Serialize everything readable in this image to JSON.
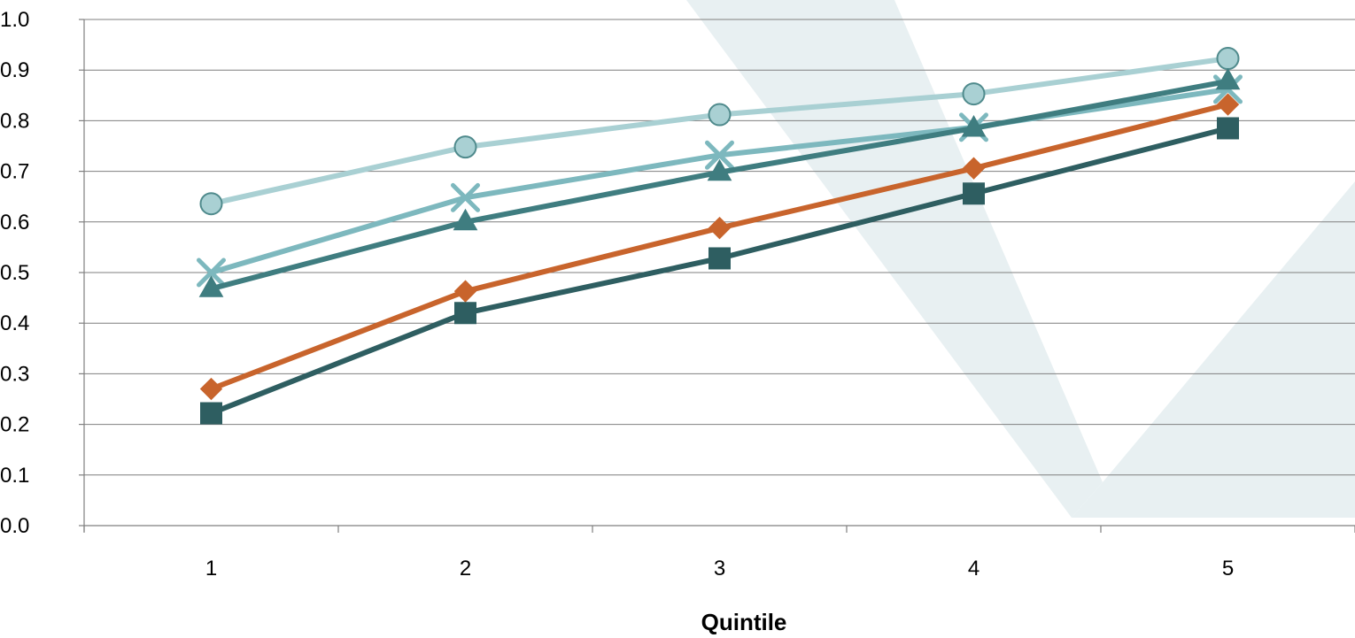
{
  "chart_data": {
    "type": "line",
    "title": "",
    "xlabel": "Quintile",
    "ylabel": "",
    "categories": [
      "1",
      "2",
      "3",
      "4",
      "5"
    ],
    "ylim": [
      0.0,
      1.0
    ],
    "y_ticks": [
      "0.0",
      "0.1",
      "0.2",
      "0.3",
      "0.4",
      "0.5",
      "0.6",
      "0.7",
      "0.8",
      "0.9",
      "1.0"
    ],
    "grid": true,
    "legend": "none",
    "series": [
      {
        "values": [
          0.636,
          0.748,
          0.812,
          0.853,
          0.923
        ],
        "color": "#A9D0D3",
        "marker": "circle",
        "marker_fill": "#A9D0D3",
        "marker_stroke": "#4F8A8C"
      },
      {
        "values": [
          0.5,
          0.648,
          0.732,
          0.787,
          0.862
        ],
        "color": "#7DB8BE",
        "marker": "x",
        "marker_fill": "#7DB8BE",
        "marker_stroke": "#7DB8BE"
      },
      {
        "values": [
          0.468,
          0.6,
          0.698,
          0.785,
          0.878
        ],
        "color": "#3F7D80",
        "marker": "triangle",
        "marker_fill": "#3F7D80",
        "marker_stroke": "#3F7D80"
      },
      {
        "values": [
          0.27,
          0.463,
          0.588,
          0.706,
          0.832
        ],
        "color": "#C8642C",
        "marker": "diamond",
        "marker_fill": "#C8642C",
        "marker_stroke": "#C8642C"
      },
      {
        "values": [
          0.222,
          0.42,
          0.528,
          0.656,
          0.785
        ],
        "color": "#2E5E61",
        "marker": "square",
        "marker_fill": "#2E5E61",
        "marker_stroke": "#2E5E61"
      }
    ]
  },
  "background": {
    "watermark_color": "#E8F0F2"
  },
  "colors": {
    "gridline": "#7F7F7F",
    "axis": "#7F7F7F"
  }
}
